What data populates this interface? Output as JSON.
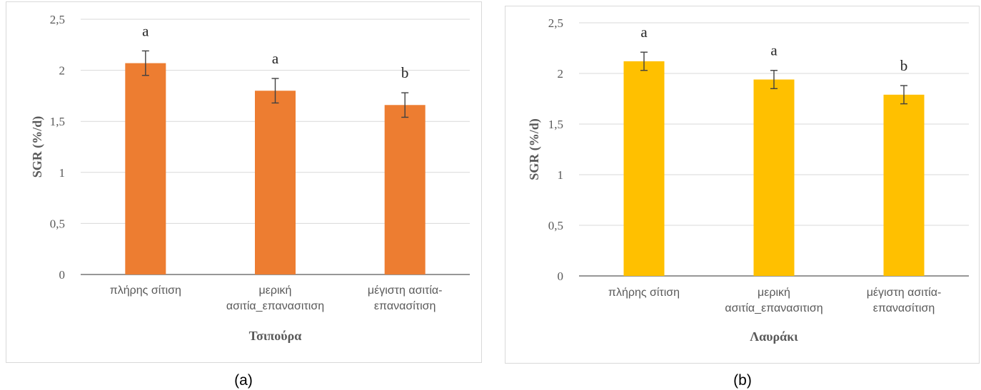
{
  "chart_data": [
    {
      "type": "bar",
      "panel_label": "(a)",
      "categories": [
        [
          "πλήρης σίτιση"
        ],
        [
          "μερική",
          "ασιτία_επανασιτιση"
        ],
        [
          "μέγιστη ασιτία-",
          "επανασίτιση"
        ]
      ],
      "values": [
        2.07,
        1.8,
        1.66
      ],
      "errors": [
        0.12,
        0.12,
        0.12
      ],
      "significance": [
        "a",
        "a",
        "b"
      ],
      "xlabel": "Τσιπούρα",
      "ylabel": "SGR (%/d)",
      "ylim": [
        0,
        2.5
      ],
      "yticks": [
        0,
        0.5,
        1,
        1.5,
        2,
        2.5
      ],
      "ytick_labels": [
        "0",
        "0,5",
        "1",
        "1,5",
        "2",
        "2,5"
      ],
      "color": "#ed7d31",
      "grid": true
    },
    {
      "type": "bar",
      "panel_label": "(b)",
      "categories": [
        [
          "πλήρης σίτιση"
        ],
        [
          "μερική",
          "ασιτία_επανασιτιση"
        ],
        [
          "μέγιστη ασιτία-",
          "επανασίτιση"
        ]
      ],
      "values": [
        2.12,
        1.94,
        1.79
      ],
      "errors": [
        0.09,
        0.09,
        0.09
      ],
      "significance": [
        "a",
        "a",
        "b"
      ],
      "xlabel": "Λαυράκι",
      "ylabel": "SGR (%/d)",
      "ylim": [
        0,
        2.5
      ],
      "yticks": [
        0,
        0.5,
        1,
        1.5,
        2,
        2.5
      ],
      "ytick_labels": [
        "0",
        "0,5",
        "1",
        "1,5",
        "2",
        "2,5"
      ],
      "color": "#ffc000",
      "grid": true
    }
  ]
}
